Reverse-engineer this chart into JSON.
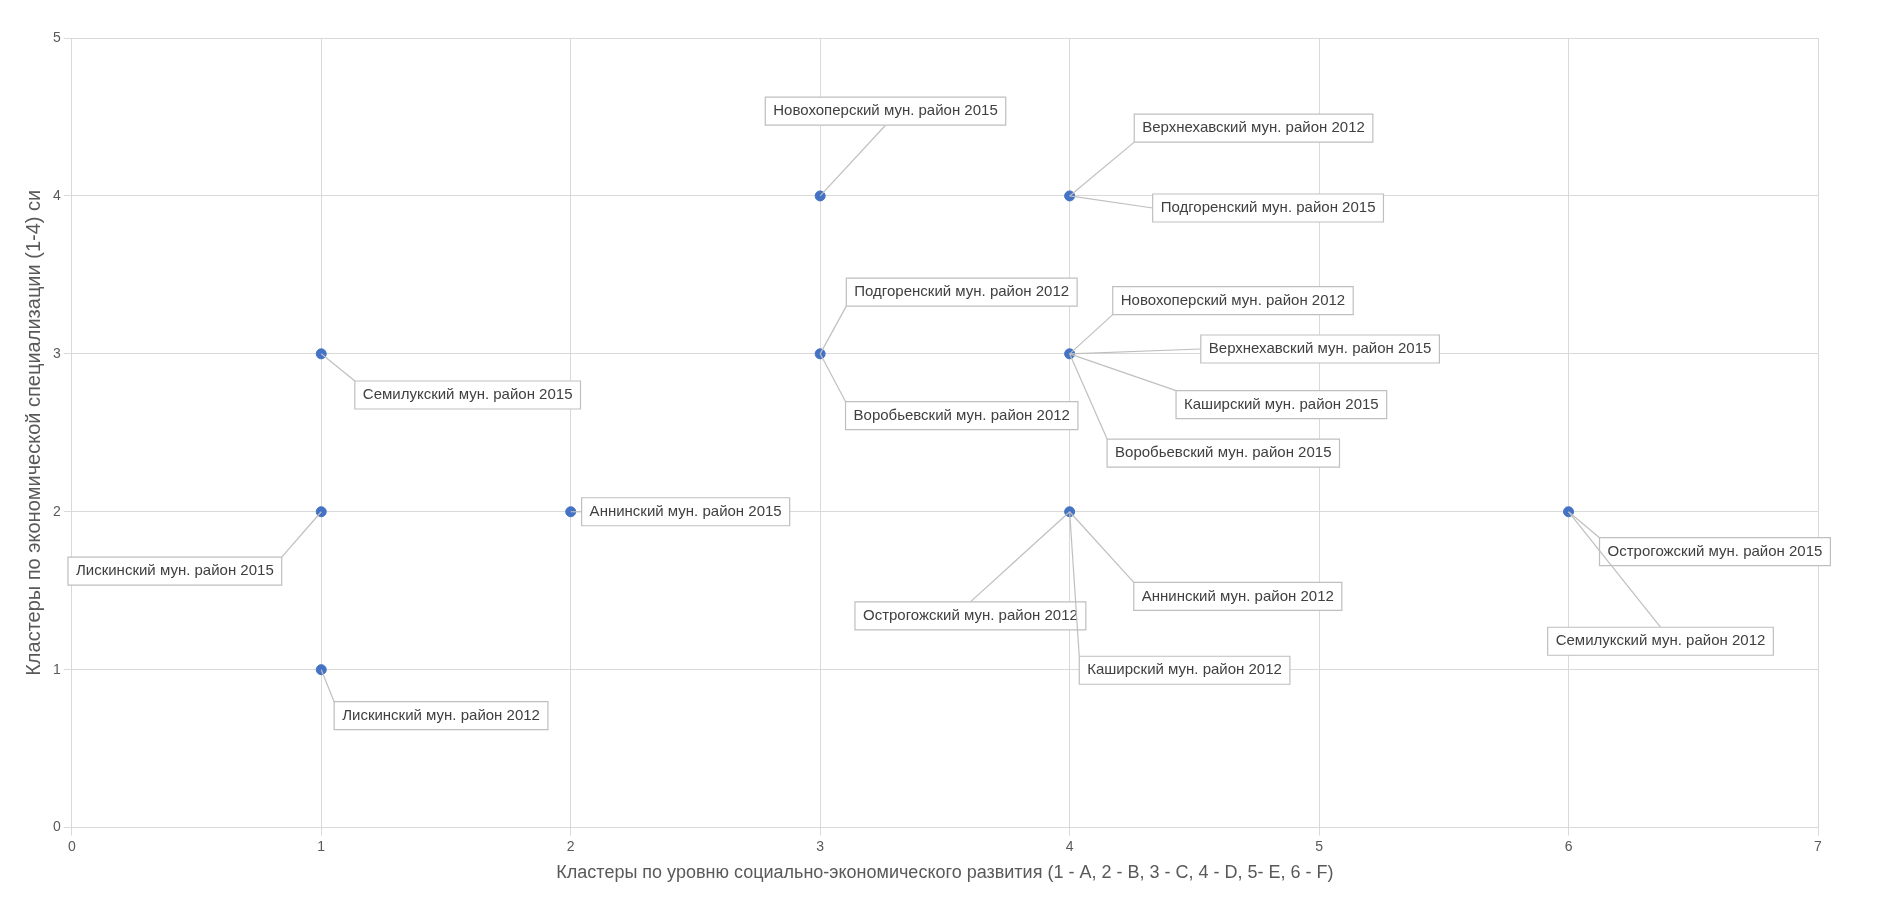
{
  "chart_data": {
    "type": "scatter",
    "xlabel": "Кластеры по уровню социально-экономического развития (1 - A, 2 - B, 3 - C, 4 - D, 5- E, 6 - F)",
    "ylabel": "Кластеры по экономической специализации (1-4) си",
    "x": [
      1,
      1,
      1,
      2,
      3,
      3,
      4,
      4,
      4,
      6
    ],
    "values": [
      3,
      2,
      1,
      2,
      4,
      3,
      4,
      3,
      2,
      2
    ],
    "color": "#4472c4",
    "marker": "circle",
    "grid": true,
    "xlim": [
      0,
      7
    ],
    "xticks": [
      0,
      1,
      2,
      3,
      4,
      5,
      6,
      7
    ],
    "ylim": [
      0,
      5
    ],
    "yticks": [
      0,
      1,
      2,
      3,
      4,
      5
    ],
    "annotations": [
      {
        "text": "Новохоперский мун. район 2015",
        "x": 3,
        "y": 4
      },
      {
        "text": "Верхнехавский мун. район 2012",
        "x": 4,
        "y": 4
      },
      {
        "text": "Подгоренский мун. район 2015",
        "x": 4,
        "y": 4
      },
      {
        "text": "Подгоренский мун. район 2012",
        "x": 3,
        "y": 3
      },
      {
        "text": "Воробьевский мун. район 2012",
        "x": 3,
        "y": 3
      },
      {
        "text": "Новохоперский мун. район 2012",
        "x": 4,
        "y": 3
      },
      {
        "text": "Верхнехавский мун. район 2015",
        "x": 4,
        "y": 3
      },
      {
        "text": "Каширский мун. район 2015",
        "x": 4,
        "y": 3
      },
      {
        "text": "Воробьевский мун. район 2015",
        "x": 4,
        "y": 3
      },
      {
        "text": "Семилукский мун. район 2015",
        "x": 1,
        "y": 3
      },
      {
        "text": "Лискинский мун. район 2015",
        "x": 1,
        "y": 2
      },
      {
        "text": "Аннинский мун. район 2015",
        "x": 2,
        "y": 2
      },
      {
        "text": "Острогожский мун. район 2012",
        "x": 4,
        "y": 2
      },
      {
        "text": "Аннинский мун. район 2012",
        "x": 4,
        "y": 2
      },
      {
        "text": "Каширский мун. район 2012",
        "x": 4,
        "y": 2
      },
      {
        "text": "Острогожский мун. район 2015",
        "x": 6,
        "y": 2
      },
      {
        "text": "Семилукский мун. район 2012",
        "x": 6,
        "y": 2
      },
      {
        "text": "Лискинский мун. район 2012",
        "x": 1,
        "y": 1
      }
    ]
  }
}
